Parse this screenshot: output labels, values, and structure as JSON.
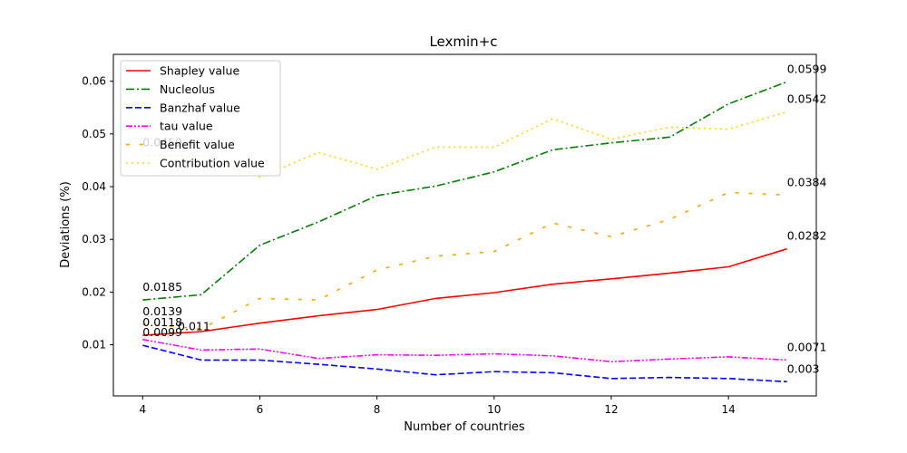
{
  "chart_data": {
    "type": "line",
    "title": "Lexmin+c",
    "xlabel": "Number of countries",
    "ylabel": "Deviations (%)",
    "xlim": [
      3.5,
      15.5
    ],
    "ylim": [
      0.0003,
      0.0651
    ],
    "xticks": [
      4,
      6,
      8,
      10,
      12,
      14
    ],
    "yticks": [
      0.01,
      0.02,
      0.03,
      0.04,
      0.05,
      0.06
    ],
    "xtick_labels": [
      "4",
      "6",
      "8",
      "10",
      "12",
      "14"
    ],
    "ytick_labels": [
      "0.01",
      "0.02",
      "0.03",
      "0.04",
      "0.05",
      "0.06"
    ],
    "grid": false,
    "legend_position": "top-left",
    "x": [
      4,
      5,
      6,
      7,
      8,
      9,
      10,
      11,
      12,
      13,
      14,
      15
    ],
    "series": [
      {
        "name": "Shapley value",
        "color": "#ff0000",
        "dash": "solid",
        "values": [
          0.0118,
          0.0125,
          0.0141,
          0.0155,
          0.0167,
          0.0188,
          0.0199,
          0.0215,
          0.0225,
          0.0236,
          0.0248,
          0.0282
        ]
      },
      {
        "name": "Nucleolus",
        "color": "#008000",
        "dash": "dashdot",
        "values": [
          0.0185,
          0.0195,
          0.0289,
          0.0333,
          0.0383,
          0.0401,
          0.0428,
          0.047,
          0.0483,
          0.0494,
          0.0557,
          0.0599
        ]
      },
      {
        "name": "Banzhaf value",
        "color": "#0000ff",
        "dash": "dashed",
        "values": [
          0.0099,
          0.0071,
          0.0071,
          0.0063,
          0.0054,
          0.0043,
          0.0049,
          0.0047,
          0.0036,
          0.0038,
          0.0036,
          0.003
        ]
      },
      {
        "name": "tau value",
        "color": "#ff00ff",
        "dash": "dashdotdot",
        "values": [
          0.011,
          0.009,
          0.0092,
          0.0074,
          0.0081,
          0.008,
          0.0083,
          0.0079,
          0.0068,
          0.0073,
          0.0077,
          0.0071
        ]
      },
      {
        "name": "Benefit value",
        "color": "#ffa500",
        "dash": "loosedash",
        "values": [
          0.0139,
          0.013,
          0.0188,
          0.0185,
          0.0242,
          0.0268,
          0.0277,
          0.0331,
          0.0305,
          0.0338,
          0.0389,
          0.0384
        ]
      },
      {
        "name": "Contribution value",
        "color": "#ffd700",
        "dash": "dotted",
        "values": [
          0.0459,
          0.0459,
          0.0418,
          0.0465,
          0.0433,
          0.0475,
          0.0475,
          0.0529,
          0.049,
          0.0513,
          0.0509,
          0.0542
        ]
      }
    ],
    "annotations": [
      {
        "text": "0.0185",
        "x": 4,
        "y": 0.0185
      },
      {
        "text": "0.0139",
        "x": 4,
        "y": 0.0139
      },
      {
        "text": "0.0118",
        "x": 4,
        "y": 0.0118
      },
      {
        "text": "0.011",
        "x": 4.6,
        "y": 0.011
      },
      {
        "text": "0.0099",
        "x": 4,
        "y": 0.0099
      },
      {
        "text": "0.0459",
        "x": 4,
        "y": 0.0459
      },
      {
        "text": "0.0599",
        "x": 15,
        "y": 0.0599
      },
      {
        "text": "0.0542",
        "x": 15,
        "y": 0.0542
      },
      {
        "text": "0.0384",
        "x": 15,
        "y": 0.0384
      },
      {
        "text": "0.0282",
        "x": 15,
        "y": 0.0282
      },
      {
        "text": "0.0071",
        "x": 15,
        "y": 0.0071
      },
      {
        "text": "0.003",
        "x": 15,
        "y": 0.003
      }
    ]
  }
}
